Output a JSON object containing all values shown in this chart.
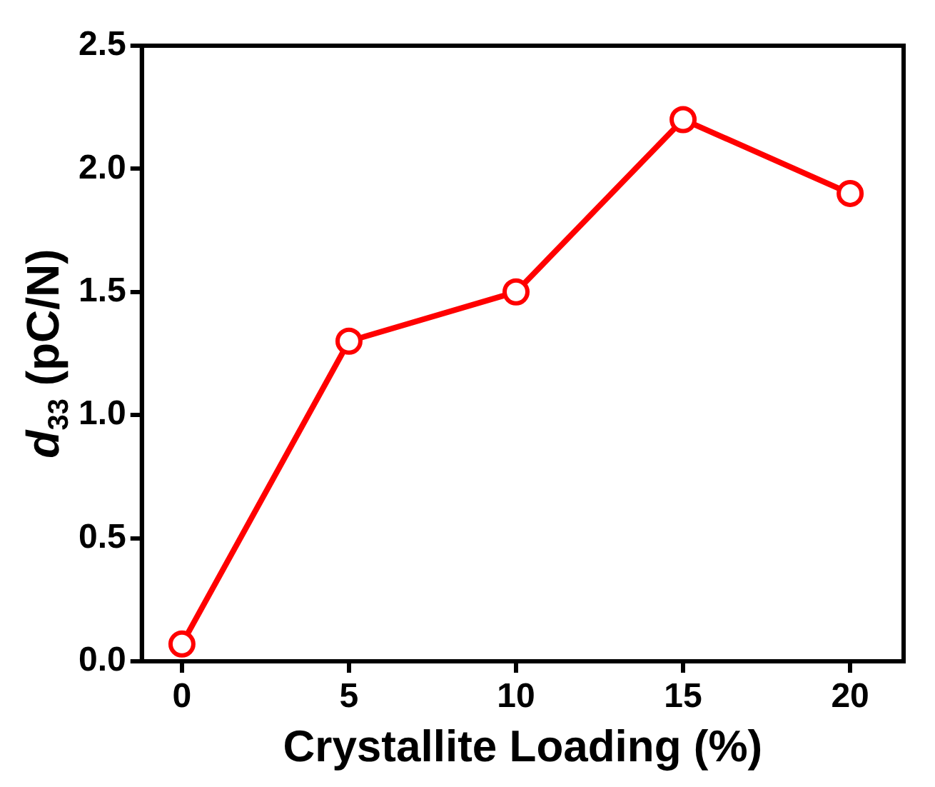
{
  "chart_data": {
    "type": "line",
    "xlabel": "Crystallite Loading (%)",
    "ylabel": "d$_{33}$ (pC/N)",
    "x": [
      0,
      5,
      10,
      15,
      20
    ],
    "series": [
      {
        "color": "#ff0000",
        "values": [
          0.07,
          1.3,
          1.5,
          2.2,
          1.9
        ]
      }
    ],
    "xlim": [
      -1.2,
      21.6
    ],
    "xticks": [
      0,
      5,
      10,
      15,
      20
    ],
    "ylim": [
      0,
      2.5
    ],
    "yticks": [
      {
        "value": 0,
        "label": "0.0"
      },
      0.5,
      {
        "value": 1,
        "label": "1.0"
      },
      1.5,
      {
        "value": 2,
        "label": "2.0"
      },
      2.5
    ],
    "marker": "circle",
    "line_style": "solid",
    "grid": false,
    "legend": false
  }
}
